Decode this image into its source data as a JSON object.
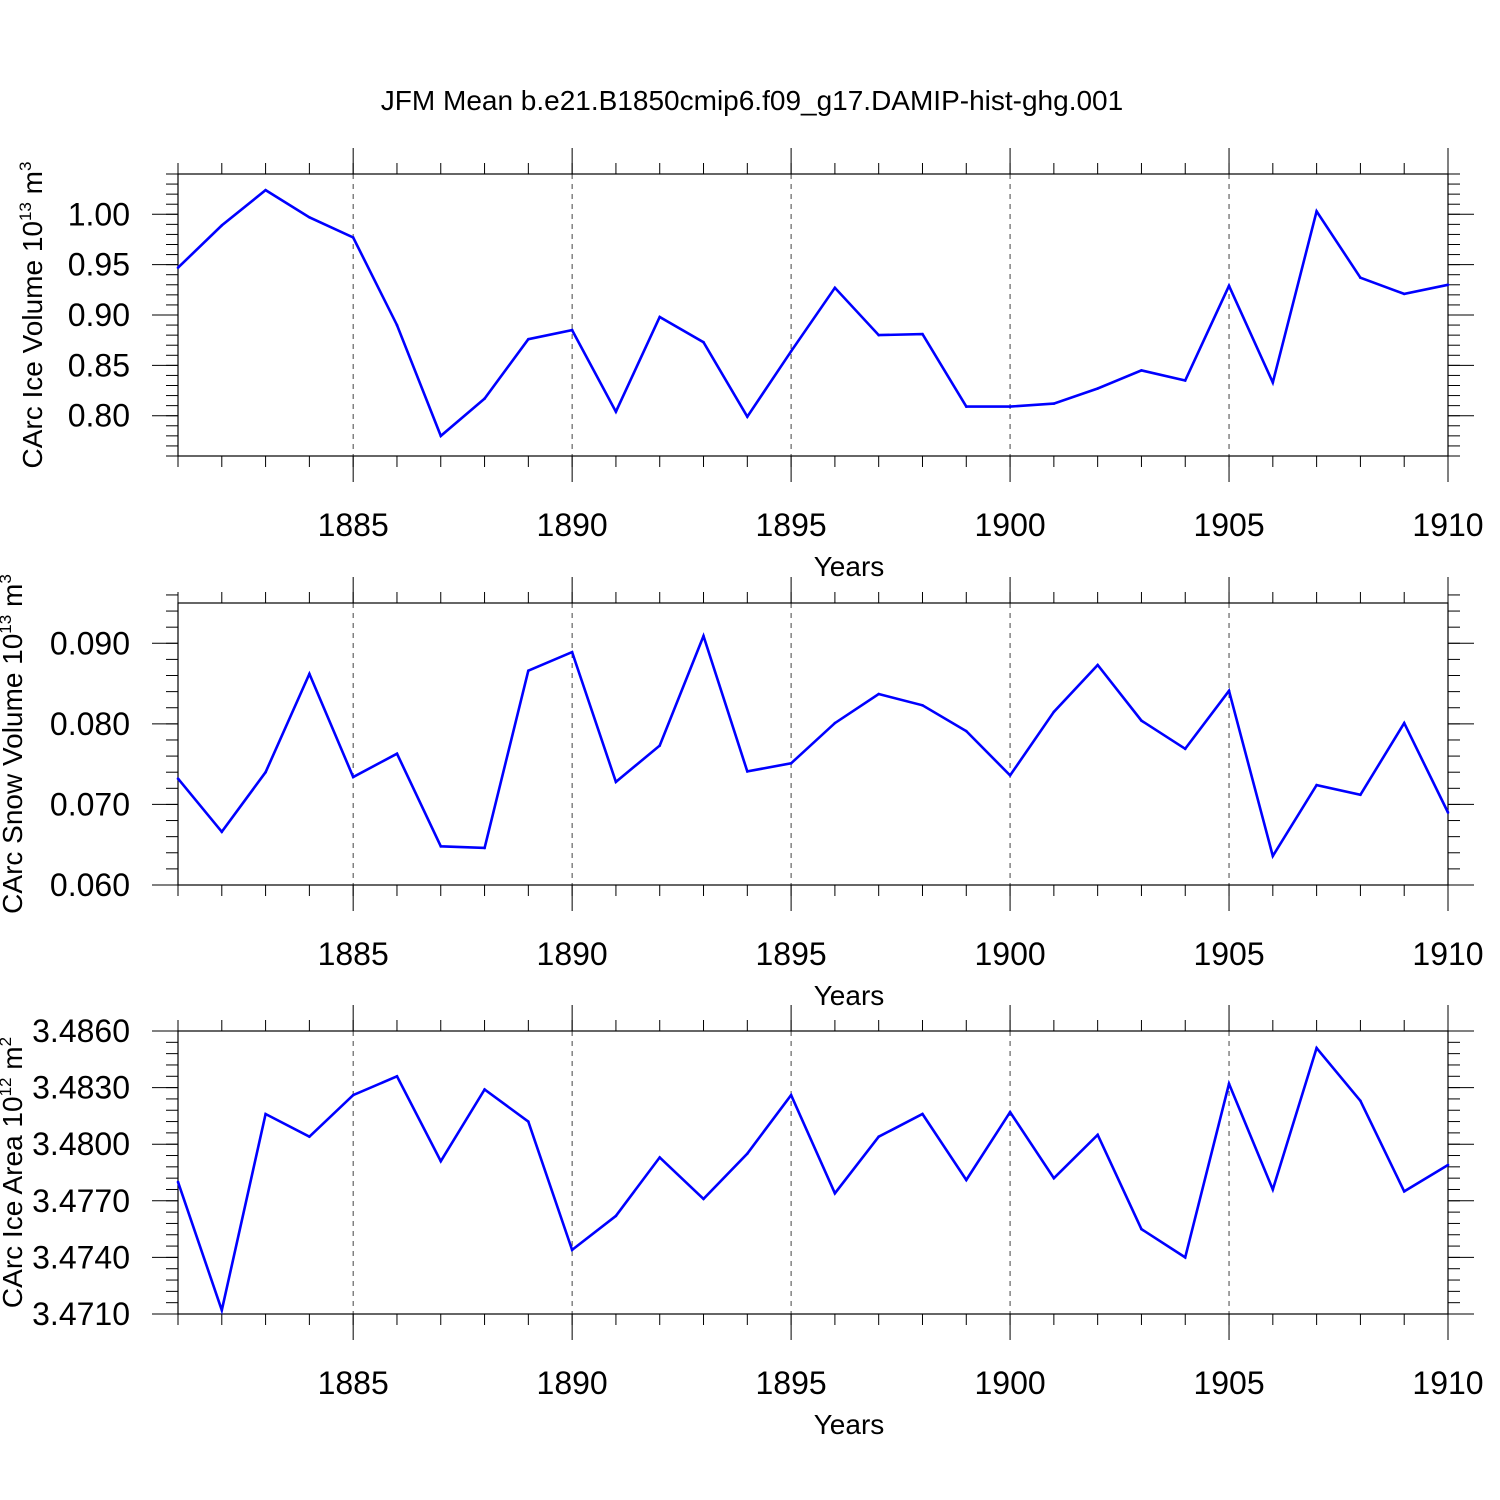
{
  "figure_title": "JFM Mean b.e21.B1850cmip6.f09_g17.DAMIP-hist-ghg.001",
  "colors": {
    "line": "#0000ff",
    "axes": "#000000",
    "grid": "#444444"
  },
  "chart_data": [
    {
      "type": "line",
      "title": "",
      "xlabel": "Years",
      "ylabel": "CArc Ice Volume 10",
      "ylabel_sup": "13",
      "ylabel_unit": " m",
      "ylabel_unit_sup": "3",
      "xlim": [
        1881,
        1910
      ],
      "ylim": [
        0.76,
        1.04
      ],
      "grid": "dashed vertical lines at major x ticks",
      "x_ticks": [
        1885,
        1890,
        1895,
        1900,
        1905,
        1910
      ],
      "x_tick_labels": [
        "1885",
        "1890",
        "1895",
        "1900",
        "1905",
        "1910"
      ],
      "y_ticks": [
        0.8,
        0.85,
        0.9,
        0.95,
        1.0
      ],
      "y_tick_labels": [
        "0.80",
        "0.85",
        "0.90",
        "0.95",
        "1.00"
      ],
      "y_minor_step": 0.01,
      "x": [
        1881,
        1882,
        1883,
        1884,
        1885,
        1886,
        1887,
        1888,
        1889,
        1890,
        1891,
        1892,
        1893,
        1894,
        1895,
        1896,
        1897,
        1898,
        1899,
        1900,
        1901,
        1902,
        1903,
        1904,
        1905,
        1906,
        1907,
        1908,
        1909,
        1910
      ],
      "series": [
        {
          "name": "CArc Ice Volume",
          "values": [
            0.947,
            0.989,
            1.024,
            0.997,
            0.977,
            0.89,
            0.78,
            0.817,
            0.876,
            0.885,
            0.804,
            0.898,
            0.873,
            0.799,
            0.864,
            0.927,
            0.88,
            0.881,
            0.809,
            0.809,
            0.812,
            0.827,
            0.845,
            0.835,
            0.929,
            0.833,
            1.003,
            0.937,
            0.921,
            0.93
          ]
        }
      ]
    },
    {
      "type": "line",
      "title": "",
      "xlabel": "Years",
      "ylabel": "CArc Snow Volume 10",
      "ylabel_sup": "13",
      "ylabel_unit": " m",
      "ylabel_unit_sup": "3",
      "xlim": [
        1881,
        1910
      ],
      "ylim": [
        0.06,
        0.095
      ],
      "grid": "dashed vertical lines at major x ticks",
      "x_ticks": [
        1885,
        1890,
        1895,
        1900,
        1905,
        1910
      ],
      "x_tick_labels": [
        "1885",
        "1890",
        "1895",
        "1900",
        "1905",
        "1910"
      ],
      "y_ticks": [
        0.06,
        0.07,
        0.08,
        0.09
      ],
      "y_tick_labels": [
        "0.060",
        "0.070",
        "0.080",
        "0.090"
      ],
      "y_minor_step": 0.002,
      "x": [
        1881,
        1882,
        1883,
        1884,
        1885,
        1886,
        1887,
        1888,
        1889,
        1890,
        1891,
        1892,
        1893,
        1894,
        1895,
        1896,
        1897,
        1898,
        1899,
        1900,
        1901,
        1902,
        1903,
        1904,
        1905,
        1906,
        1907,
        1908,
        1909,
        1910
      ],
      "series": [
        {
          "name": "CArc Snow Volume",
          "values": [
            0.0732,
            0.0666,
            0.074,
            0.0862,
            0.0734,
            0.0763,
            0.0648,
            0.0646,
            0.0866,
            0.0889,
            0.0728,
            0.0773,
            0.0909,
            0.0741,
            0.0751,
            0.0801,
            0.0837,
            0.0823,
            0.0791,
            0.0736,
            0.0815,
            0.0873,
            0.0804,
            0.0769,
            0.0841,
            0.0636,
            0.0724,
            0.0712,
            0.0801,
            0.069
          ]
        }
      ]
    },
    {
      "type": "line",
      "title": "",
      "xlabel": "Years",
      "ylabel": "CArc Ice Area 10",
      "ylabel_sup": "12",
      "ylabel_unit": " m",
      "ylabel_unit_sup": "2",
      "xlim": [
        1881,
        1910
      ],
      "ylim": [
        3.471,
        3.486
      ],
      "grid": "dashed vertical lines at major x ticks",
      "x_ticks": [
        1885,
        1890,
        1895,
        1900,
        1905,
        1910
      ],
      "x_tick_labels": [
        "1885",
        "1890",
        "1895",
        "1900",
        "1905",
        "1910"
      ],
      "y_ticks": [
        3.471,
        3.474,
        3.477,
        3.48,
        3.483,
        3.486
      ],
      "y_tick_labels": [
        "3.4710",
        "3.4740",
        "3.4770",
        "3.4800",
        "3.4830",
        "3.4860"
      ],
      "y_minor_step": 0.0006,
      "x": [
        1881,
        1882,
        1883,
        1884,
        1885,
        1886,
        1887,
        1888,
        1889,
        1890,
        1891,
        1892,
        1893,
        1894,
        1895,
        1896,
        1897,
        1898,
        1899,
        1900,
        1901,
        1902,
        1903,
        1904,
        1905,
        1906,
        1907,
        1908,
        1909,
        1910
      ],
      "series": [
        {
          "name": "CArc Ice Area",
          "values": [
            3.478,
            3.4712,
            3.4816,
            3.4804,
            3.4826,
            3.4836,
            3.4791,
            3.4829,
            3.4812,
            3.4744,
            3.4762,
            3.4793,
            3.4771,
            3.4795,
            3.4826,
            3.4774,
            3.4804,
            3.4816,
            3.4781,
            3.4817,
            3.4782,
            3.4805,
            3.4755,
            3.474,
            3.4832,
            3.4776,
            3.4851,
            3.4823,
            3.4775,
            3.4789
          ]
        }
      ]
    }
  ]
}
